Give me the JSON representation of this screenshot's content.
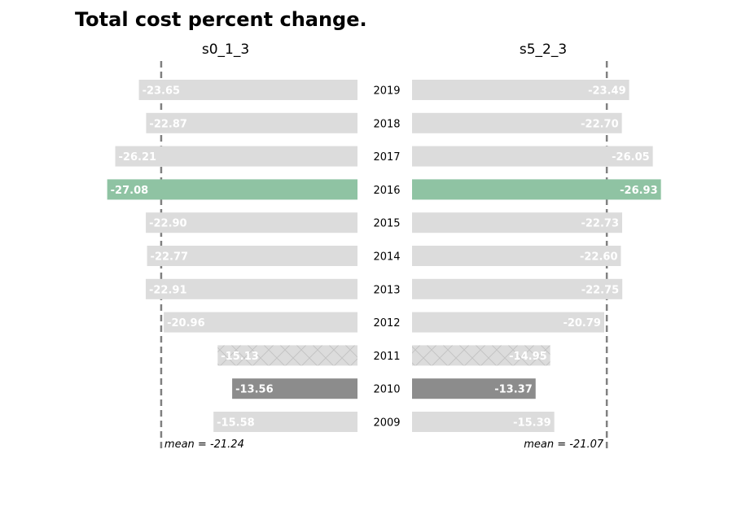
{
  "chart_data": {
    "type": "bar",
    "orientation": "horizontal",
    "title": "Total cost percent change.",
    "categories": [
      "2019",
      "2018",
      "2017",
      "2016",
      "2015",
      "2014",
      "2013",
      "2012",
      "2011",
      "2010",
      "2009"
    ],
    "series": [
      {
        "name": "s0_1_3",
        "values": [
          -23.65,
          -22.87,
          -26.21,
          -27.08,
          -22.9,
          -22.77,
          -22.91,
          -20.96,
          -15.13,
          -13.56,
          -15.58
        ],
        "value_labels": [
          "-23.65",
          "-22.87",
          "-26.21",
          "-27.08",
          "-22.90",
          "-22.77",
          "-22.91",
          "-20.96",
          "-15.13",
          "-13.56",
          "-15.58"
        ],
        "mean": -21.24,
        "mean_label": "mean = -21.24"
      },
      {
        "name": "s5_2_3",
        "values": [
          -23.49,
          -22.7,
          -26.05,
          -26.93,
          -22.73,
          -22.6,
          -22.75,
          -20.79,
          -14.95,
          -13.37,
          -15.39
        ],
        "value_labels": [
          "-23.49",
          "-22.70",
          "-26.05",
          "-26.93",
          "-22.73",
          "-22.60",
          "-22.75",
          "-20.79",
          "-14.95",
          "-13.37",
          "-15.39"
        ],
        "mean": -21.07,
        "mean_label": "mean = -21.07"
      }
    ],
    "highlight": {
      "2016": "max-decrease",
      "2010": "min-decrease",
      "2011": "hatched"
    },
    "colors": {
      "default": "#dcdcdc",
      "max": "#8fc3a3",
      "min": "#8c8c8c",
      "hatch_stroke": "#c2c2c2",
      "mean_line": "#808080"
    },
    "grid": false
  }
}
